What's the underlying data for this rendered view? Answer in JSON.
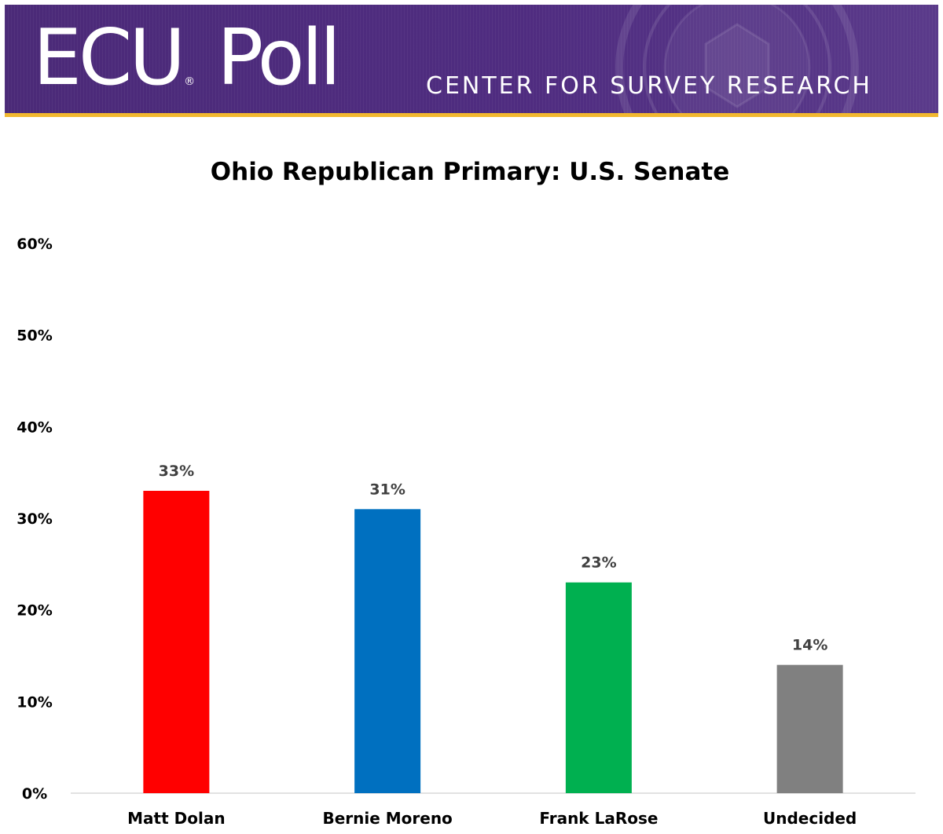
{
  "banner": {
    "logo_text": "ECU",
    "logo_registered": "®",
    "logo_text_2": "Poll",
    "tagline": "CENTER FOR SURVEY RESEARCH",
    "background_color": "#4b2a78",
    "stripe_color": "#f2b82f"
  },
  "chart_data": {
    "type": "bar",
    "title": "Ohio Republican Primary: U.S. Senate",
    "xlabel": "",
    "ylabel": "",
    "categories": [
      "Matt Dolan",
      "Bernie Moreno",
      "Frank LaRose",
      "Undecided"
    ],
    "values": [
      33,
      31,
      23,
      14
    ],
    "value_labels": [
      "33%",
      "31%",
      "23%",
      "14%"
    ],
    "colors": [
      "#ff0000",
      "#0070c0",
      "#00b050",
      "#808080"
    ],
    "ylim": [
      0,
      60
    ],
    "yticks": [
      0,
      10,
      20,
      30,
      40,
      50,
      60
    ],
    "ytick_labels": [
      "0%",
      "10%",
      "20%",
      "30%",
      "40%",
      "50%",
      "60%"
    ],
    "grid": false,
    "legend": "none"
  }
}
